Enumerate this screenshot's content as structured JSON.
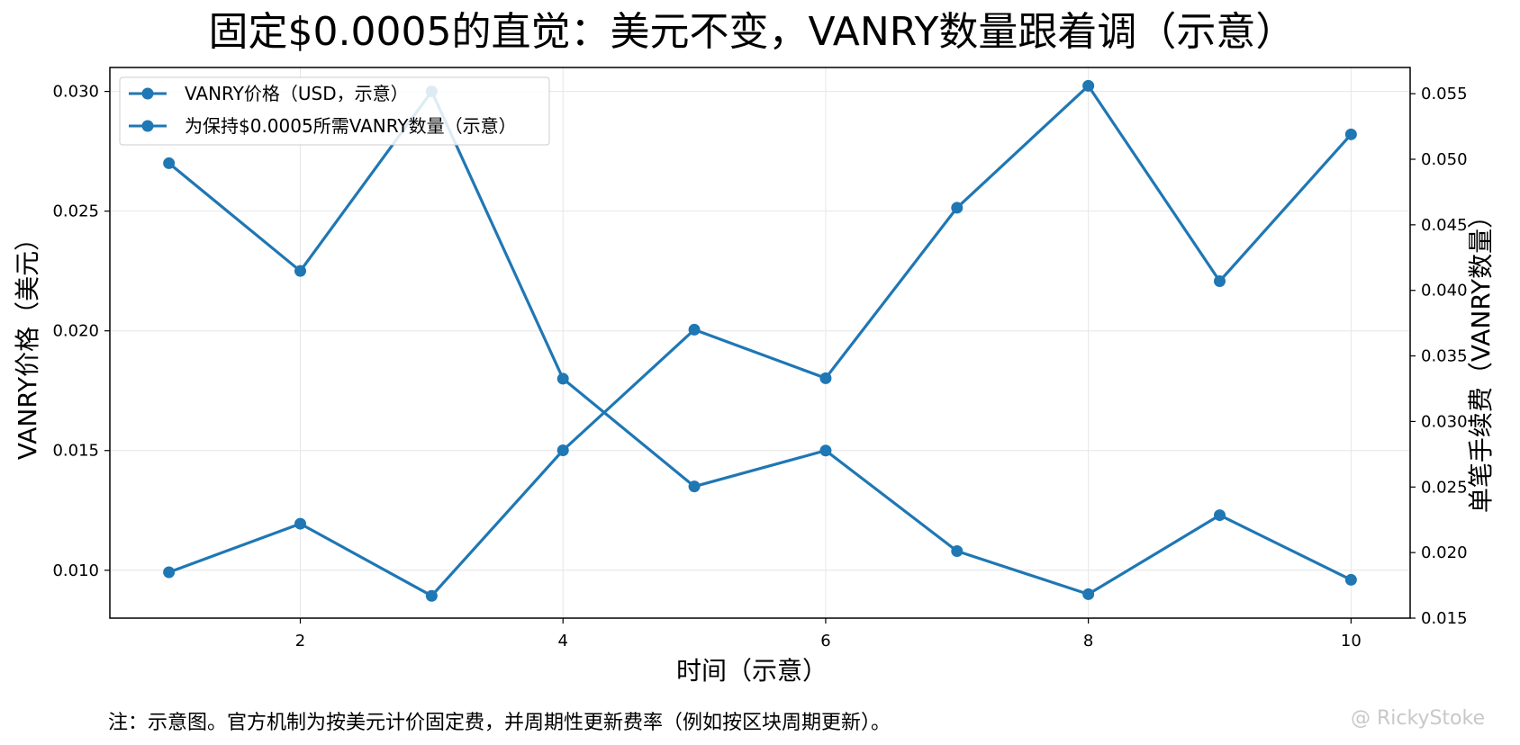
{
  "chart_data": {
    "type": "line",
    "title": "固定$0.0005的直觉：美元不变，VANRY数量跟着调（示意）",
    "xlabel": "时间（示意）",
    "ylabel": "VANRY价格（美元）",
    "y2label": "单笔手续费（VANRY数量）",
    "x": [
      1,
      2,
      3,
      4,
      5,
      6,
      7,
      8,
      9,
      10
    ],
    "xticks": [
      2,
      4,
      6,
      8,
      10
    ],
    "xlim": [
      0.55,
      10.45
    ],
    "ylim": [
      0.008,
      0.031
    ],
    "yticks": [
      "0.010",
      "0.015",
      "0.020",
      "0.025",
      "0.030"
    ],
    "y2lim": [
      0.015,
      0.057
    ],
    "y2ticks": [
      "0.015",
      "0.020",
      "0.025",
      "0.030",
      "0.035",
      "0.040",
      "0.045",
      "0.050",
      "0.055"
    ],
    "grid": true,
    "legend_position": "top-left",
    "series": [
      {
        "name": "VANRY价格（USD，示意）",
        "axis": "left",
        "color": "#1f77b4",
        "values": [
          0.027,
          0.0225,
          0.03,
          0.018,
          0.0135,
          0.015,
          0.0108,
          0.009,
          0.0123,
          0.0096
        ]
      },
      {
        "name": "为保持$0.0005所需VANRY数量（示意）",
        "axis": "right",
        "color": "#1f77b4",
        "values": [
          0.0185,
          0.0222,
          0.0167,
          0.0278,
          0.037,
          0.0333,
          0.0463,
          0.0556,
          0.0407,
          0.0519
        ]
      }
    ]
  },
  "footer": {
    "note": "注：示意图。官方机制为按美元计价固定费，并周期性更新费率（例如按区块周期更新）。",
    "watermark": "@ RickyStoke"
  }
}
